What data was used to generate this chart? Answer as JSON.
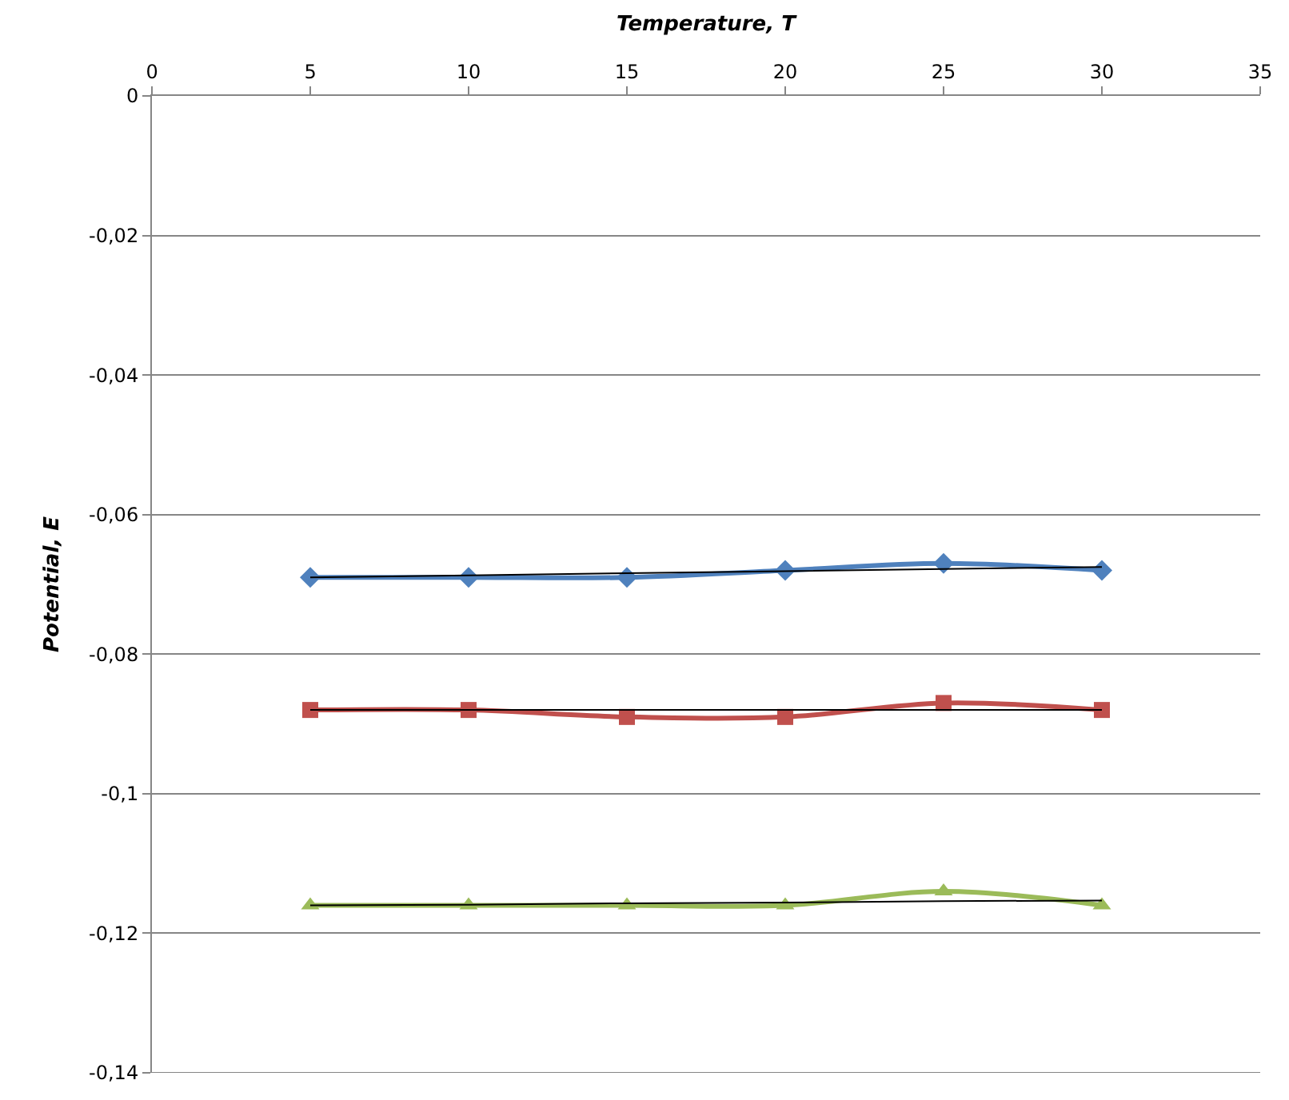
{
  "chart_data": {
    "type": "line",
    "xlabel": "Temperature, T",
    "ylabel": "Potential, E",
    "x": [
      5,
      10,
      15,
      20,
      25,
      30
    ],
    "series": [
      {
        "color": "#4f81bd",
        "marker": "diamond",
        "values": [
          -0.069,
          -0.069,
          -0.069,
          -0.068,
          -0.067,
          -0.068
        ]
      },
      {
        "color": "#c0504d",
        "marker": "square",
        "values": [
          -0.088,
          -0.088,
          -0.089,
          -0.089,
          -0.087,
          -0.088
        ]
      },
      {
        "color": "#9bbb59",
        "marker": "triangle",
        "values": [
          -0.116,
          -0.116,
          -0.116,
          -0.116,
          -0.114,
          -0.116
        ]
      },
      {
        "type": "line",
        "color": "#000000",
        "marker": "none",
        "values": [
          -0.069,
          -0.0687,
          -0.0684,
          -0.0681,
          -0.0678,
          -0.0675
        ]
      },
      {
        "type": "line",
        "color": "#000000",
        "marker": "none",
        "values": [
          -0.088,
          -0.088,
          -0.088,
          -0.088,
          -0.088,
          -0.088
        ]
      },
      {
        "type": "line",
        "color": "#000000",
        "marker": "none",
        "values": [
          -0.116,
          -0.1159,
          -0.1157,
          -0.1156,
          -0.1154,
          -0.1153
        ]
      }
    ],
    "xlim": [
      0,
      35
    ],
    "xticks": [
      0,
      5,
      10,
      15,
      20,
      25,
      30,
      35
    ],
    "ylim": [
      -0.14,
      0
    ],
    "yticks": [
      {
        "value": 0,
        "label": "0"
      },
      {
        "value": -0.02,
        "label": "-0,02"
      },
      {
        "value": -0.04,
        "label": "-0,04"
      },
      {
        "value": -0.06,
        "label": "-0,06"
      },
      {
        "value": -0.08,
        "label": "-0,08"
      },
      {
        "value": -0.1,
        "label": "-0,1"
      },
      {
        "value": -0.12,
        "label": "-0,12"
      },
      {
        "value": -0.14,
        "label": "-0,14"
      }
    ],
    "grid": "y"
  }
}
